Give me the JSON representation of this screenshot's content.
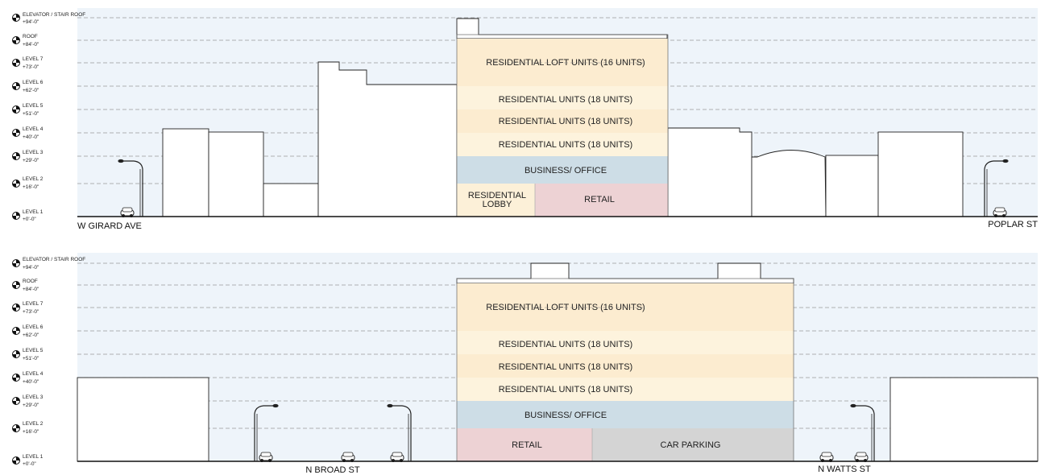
{
  "colors": {
    "sky": "#eef4fa",
    "loft": "#fcecd0",
    "residential_light": "#fdf3dd",
    "residential_mid": "#fcecd0",
    "business": "#cddde6",
    "lobby": "#fcf0d8",
    "retail": "#edd2d4",
    "parking": "#d4d4d4",
    "outline": "#222222",
    "dashed": "#999999"
  },
  "levels": [
    {
      "name": "ELEVATOR / STAIR ROOF",
      "elevation": "+94'-0\""
    },
    {
      "name": "ROOF",
      "elevation": "+84'-0\""
    },
    {
      "name": "LEVEL 7",
      "elevation": "+73'-0\""
    },
    {
      "name": "LEVEL 6",
      "elevation": "+62'-0\""
    },
    {
      "name": "LEVEL 5",
      "elevation": "+51'-0\""
    },
    {
      "name": "LEVEL 4",
      "elevation": "+40'-0\""
    },
    {
      "name": "LEVEL 3",
      "elevation": "+29'-0\""
    },
    {
      "name": "LEVEL 2",
      "elevation": "+16'-0\""
    },
    {
      "name": "LEVEL 1",
      "elevation": "+0'-0\""
    }
  ],
  "section_a": {
    "program": {
      "loft": "RESIDENTIAL LOFT UNITS (16 UNITS)",
      "res6": "RESIDENTIAL UNITS (18 UNITS)",
      "res5": "RESIDENTIAL UNITS (18 UNITS)",
      "res4": "RESIDENTIAL UNITS (18 UNITS)",
      "business": "BUSINESS/ OFFICE",
      "lobby_line1": "RESIDENTIAL",
      "lobby_line2": "LOBBY",
      "retail": "RETAIL"
    },
    "streets": {
      "left": "W GIRARD AVE",
      "right": "POPLAR ST"
    }
  },
  "section_b": {
    "program": {
      "loft": "RESIDENTIAL LOFT UNITS (16 UNITS)",
      "res6": "RESIDENTIAL UNITS (18 UNITS)",
      "res5": "RESIDENTIAL UNITS (18 UNITS)",
      "res4": "RESIDENTIAL UNITS (18 UNITS)",
      "business": "BUSINESS/ OFFICE",
      "retail": "RETAIL",
      "parking": "CAR PARKING"
    },
    "streets": {
      "left": "N BROAD ST",
      "right": "N WATTS ST"
    }
  }
}
